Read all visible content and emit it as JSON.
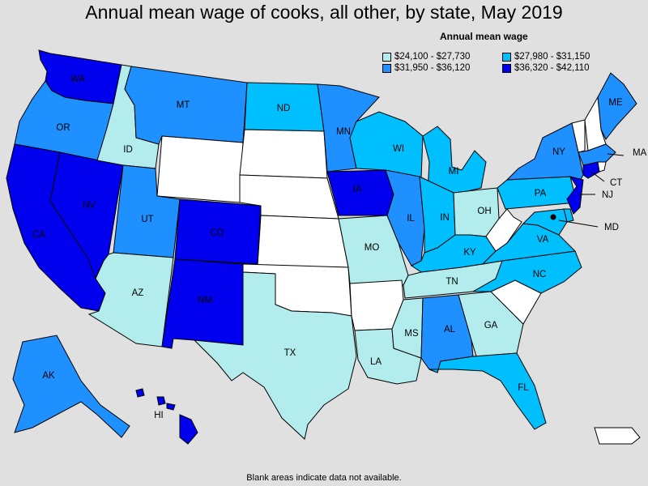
{
  "title": "Annual mean wage of cooks, all other, by state, May 2019",
  "legend": {
    "title": "Annual mean wage",
    "ranges": [
      {
        "label": "$24,100 - $27,730",
        "color": "#b3ecec"
      },
      {
        "label": "$27,980 - $31,150",
        "color": "#00bfff"
      },
      {
        "label": "$31,950 - $36,120",
        "color": "#1e90ff"
      },
      {
        "label": "$36,320 - $42,110",
        "color": "#0000ee"
      }
    ]
  },
  "no_data_color": "#ffffff",
  "footnote": "Blank areas indicate data not available.",
  "states": [
    {
      "code": "WA",
      "bin": 3
    },
    {
      "code": "OR",
      "bin": 2
    },
    {
      "code": "CA",
      "bin": 3
    },
    {
      "code": "NV",
      "bin": 3
    },
    {
      "code": "ID",
      "bin": 0
    },
    {
      "code": "MT",
      "bin": 2
    },
    {
      "code": "WY",
      "bin": null
    },
    {
      "code": "UT",
      "bin": 2
    },
    {
      "code": "AZ",
      "bin": 0
    },
    {
      "code": "CO",
      "bin": 3
    },
    {
      "code": "NM",
      "bin": 3
    },
    {
      "code": "ND",
      "bin": 1
    },
    {
      "code": "SD",
      "bin": null
    },
    {
      "code": "NE",
      "bin": null
    },
    {
      "code": "KS",
      "bin": null
    },
    {
      "code": "OK",
      "bin": null
    },
    {
      "code": "TX",
      "bin": 0
    },
    {
      "code": "MN",
      "bin": 2
    },
    {
      "code": "IA",
      "bin": 3
    },
    {
      "code": "MO",
      "bin": 0
    },
    {
      "code": "AR",
      "bin": null
    },
    {
      "code": "LA",
      "bin": 0
    },
    {
      "code": "WI",
      "bin": 1
    },
    {
      "code": "IL",
      "bin": 2
    },
    {
      "code": "MI",
      "bin": 1
    },
    {
      "code": "IN",
      "bin": 1
    },
    {
      "code": "OH",
      "bin": 0
    },
    {
      "code": "KY",
      "bin": 1
    },
    {
      "code": "TN",
      "bin": 0
    },
    {
      "code": "MS",
      "bin": 0
    },
    {
      "code": "AL",
      "bin": 2
    },
    {
      "code": "GA",
      "bin": 0
    },
    {
      "code": "FL",
      "bin": 1
    },
    {
      "code": "SC",
      "bin": null
    },
    {
      "code": "NC",
      "bin": 1
    },
    {
      "code": "VA",
      "bin": 1
    },
    {
      "code": "WV",
      "bin": null
    },
    {
      "code": "PA",
      "bin": 1
    },
    {
      "code": "NY",
      "bin": 2
    },
    {
      "code": "ME",
      "bin": 2
    },
    {
      "code": "VT",
      "bin": null
    },
    {
      "code": "NH",
      "bin": null
    },
    {
      "code": "MA",
      "bin": 2
    },
    {
      "code": "CT",
      "bin": 3
    },
    {
      "code": "RI",
      "bin": null
    },
    {
      "code": "NJ",
      "bin": 3
    },
    {
      "code": "DE",
      "bin": 1
    },
    {
      "code": "MD",
      "bin": 1
    },
    {
      "code": "DC",
      "bin": 3
    },
    {
      "code": "AK",
      "bin": 2
    },
    {
      "code": "HI",
      "bin": 3
    },
    {
      "code": "PR",
      "bin": null
    }
  ]
}
